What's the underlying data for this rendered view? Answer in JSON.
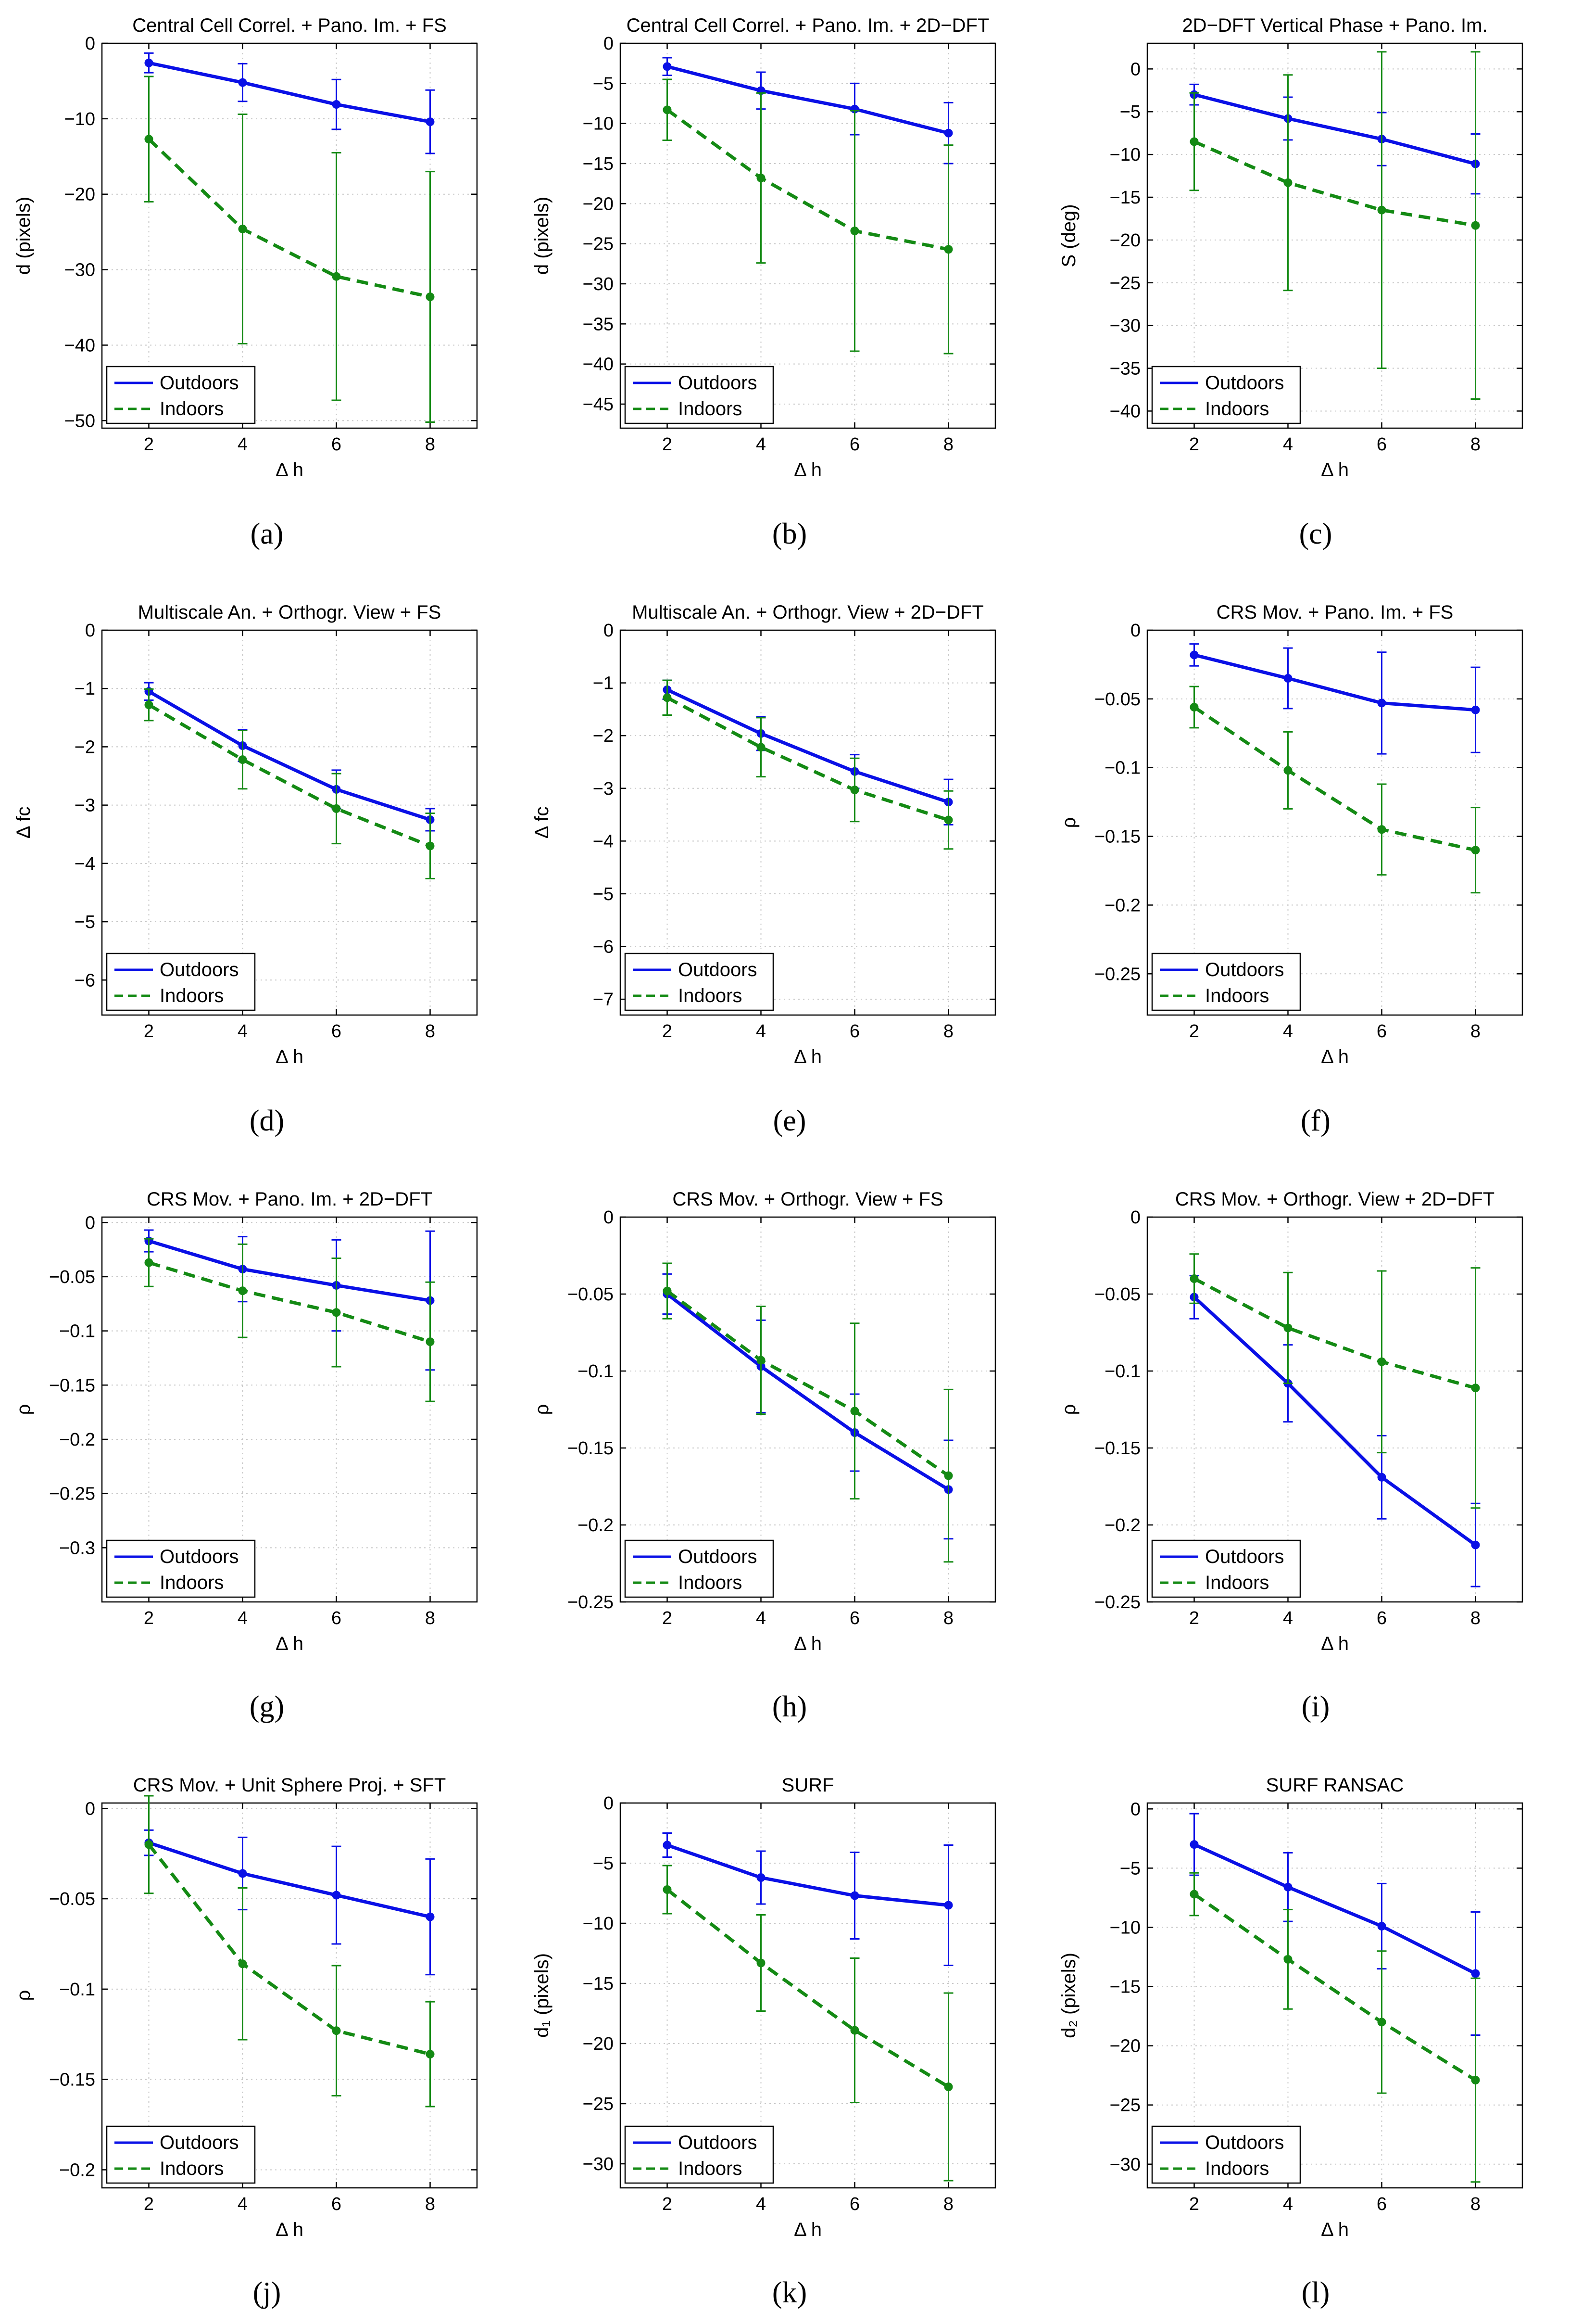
{
  "figure_title": "Performance comparison of visual homing methods: Outdoors vs Indoors",
  "colors": {
    "outdoors": "#0a10e6",
    "indoors": "#148a14",
    "grid": "#c8c8c8",
    "axis": "#000000"
  },
  "chart_data": [
    {
      "panel_label": "(a)",
      "type": "line",
      "title": "Central Cell Correl. + Pano. Im. + FS",
      "xlabel": "Δ h",
      "ylabel": "d (pixels)",
      "xlim": [
        1,
        9
      ],
      "ylim": [
        -51,
        0
      ],
      "xticks": [
        2,
        4,
        6,
        8
      ],
      "xtick_labels": [
        "2",
        "4",
        "6",
        "8"
      ],
      "yticks": [
        -50,
        -40,
        -30,
        -20,
        -10,
        0
      ],
      "ytick_labels": [
        "−50",
        "−40",
        "−30",
        "−20",
        "−10",
        "0"
      ],
      "legend": [
        "Outdoors",
        "Indoors"
      ],
      "legend_position": "bottom-left",
      "grid": true,
      "series": [
        {
          "name": "Outdoors",
          "x": [
            2,
            4,
            6,
            8
          ],
          "y": [
            -2.6,
            -5.2,
            -8.1,
            -10.4
          ],
          "err": [
            1.3,
            2.5,
            3.3,
            4.2
          ]
        },
        {
          "name": "Indoors",
          "x": [
            2,
            4,
            6,
            8
          ],
          "y": [
            -12.7,
            -24.6,
            -30.9,
            -33.6
          ],
          "err": [
            8.3,
            15.2,
            16.4,
            16.6
          ]
        }
      ]
    },
    {
      "panel_label": "(b)",
      "type": "line",
      "title": "Central Cell Correl. + Pano. Im. + 2D−DFT",
      "xlabel": "Δ h",
      "ylabel": "d (pixels)",
      "xlim": [
        1,
        9
      ],
      "ylim": [
        -48,
        0
      ],
      "xticks": [
        2,
        4,
        6,
        8
      ],
      "xtick_labels": [
        "2",
        "4",
        "6",
        "8"
      ],
      "yticks": [
        -45,
        -40,
        -35,
        -30,
        -25,
        -20,
        -15,
        -10,
        -5,
        0
      ],
      "ytick_labels": [
        "−45",
        "−40",
        "−35",
        "−30",
        "−25",
        "−20",
        "−15",
        "−10",
        "−5",
        "0"
      ],
      "legend": [
        "Outdoors",
        "Indoors"
      ],
      "legend_position": "bottom-left",
      "grid": true,
      "series": [
        {
          "name": "Outdoors",
          "x": [
            2,
            4,
            6,
            8
          ],
          "y": [
            -2.9,
            -5.9,
            -8.2,
            -11.2
          ],
          "err": [
            1.1,
            2.3,
            3.2,
            3.8
          ]
        },
        {
          "name": "Indoors",
          "x": [
            2,
            4,
            6,
            8
          ],
          "y": [
            -8.3,
            -16.8,
            -23.4,
            -25.7
          ],
          "err": [
            3.8,
            10.6,
            15.0,
            13.0
          ]
        }
      ]
    },
    {
      "panel_label": "(c)",
      "type": "line",
      "title": "2D−DFT Vertical Phase + Pano. Im.",
      "xlabel": "Δ h",
      "ylabel": "S (deg)",
      "xlim": [
        1,
        9
      ],
      "ylim": [
        -42,
        3
      ],
      "xticks": [
        2,
        4,
        6,
        8
      ],
      "xtick_labels": [
        "2",
        "4",
        "6",
        "8"
      ],
      "yticks": [
        -40,
        -35,
        -30,
        -25,
        -20,
        -15,
        -10,
        -5,
        0
      ],
      "ytick_labels": [
        "−40",
        "−35",
        "−30",
        "−25",
        "−20",
        "−15",
        "−10",
        "−5",
        "0"
      ],
      "legend": [
        "Outdoors",
        "Indoors"
      ],
      "legend_position": "bottom-left",
      "grid": true,
      "series": [
        {
          "name": "Outdoors",
          "x": [
            2,
            4,
            6,
            8
          ],
          "y": [
            -3.0,
            -5.8,
            -8.2,
            -11.1
          ],
          "err": [
            1.2,
            2.5,
            3.1,
            3.5
          ]
        },
        {
          "name": "Indoors",
          "x": [
            2,
            4,
            6,
            8
          ],
          "y": [
            -8.5,
            -13.3,
            -16.5,
            -18.3
          ],
          "err": [
            5.7,
            12.6,
            18.5,
            20.3
          ]
        }
      ]
    },
    {
      "panel_label": "(d)",
      "type": "line",
      "title": "Multiscale An. + Orthogr. View + FS",
      "xlabel": "Δ h",
      "ylabel": "Δ fc",
      "xlim": [
        1,
        9
      ],
      "ylim": [
        -6.6,
        0
      ],
      "xticks": [
        2,
        4,
        6,
        8
      ],
      "xtick_labels": [
        "2",
        "4",
        "6",
        "8"
      ],
      "yticks": [
        -6,
        -5,
        -4,
        -3,
        -2,
        -1,
        0
      ],
      "ytick_labels": [
        "−6",
        "−5",
        "−4",
        "−3",
        "−2",
        "−1",
        "0"
      ],
      "legend": [
        "Outdoors",
        "Indoors"
      ],
      "legend_position": "bottom-left",
      "grid": true,
      "series": [
        {
          "name": "Outdoors",
          "x": [
            2,
            4,
            6,
            8
          ],
          "y": [
            -1.05,
            -1.98,
            -2.73,
            -3.25
          ],
          "err": [
            0.15,
            0.27,
            0.33,
            0.19
          ]
        },
        {
          "name": "Indoors",
          "x": [
            2,
            4,
            6,
            8
          ],
          "y": [
            -1.28,
            -2.22,
            -3.06,
            -3.7
          ],
          "err": [
            0.27,
            0.5,
            0.6,
            0.56
          ]
        }
      ]
    },
    {
      "panel_label": "(e)",
      "type": "line",
      "title": "Multiscale An. + Orthogr. View + 2D−DFT",
      "xlabel": "Δ h",
      "ylabel": "Δ fc",
      "xlim": [
        1,
        9
      ],
      "ylim": [
        -7.3,
        0
      ],
      "xticks": [
        2,
        4,
        6,
        8
      ],
      "xtick_labels": [
        "2",
        "4",
        "6",
        "8"
      ],
      "yticks": [
        -7,
        -6,
        -5,
        -4,
        -3,
        -2,
        -1,
        0
      ],
      "ytick_labels": [
        "−7",
        "−6",
        "−5",
        "−4",
        "−3",
        "−2",
        "−1",
        "0"
      ],
      "legend": [
        "Outdoors",
        "Indoors"
      ],
      "legend_position": "bottom-left",
      "grid": true,
      "series": [
        {
          "name": "Outdoors",
          "x": [
            2,
            4,
            6,
            8
          ],
          "y": [
            -1.13,
            -1.96,
            -2.68,
            -3.26
          ],
          "err": [
            0.18,
            0.32,
            0.32,
            0.43
          ]
        },
        {
          "name": "Indoors",
          "x": [
            2,
            4,
            6,
            8
          ],
          "y": [
            -1.28,
            -2.22,
            -3.03,
            -3.6
          ],
          "err": [
            0.33,
            0.56,
            0.6,
            0.55
          ]
        }
      ]
    },
    {
      "panel_label": "(f)",
      "type": "line",
      "title": "CRS Mov. + Pano. Im. + FS",
      "xlabel": "Δ h",
      "ylabel": "ρ",
      "xlim": [
        1,
        9
      ],
      "ylim": [
        -0.28,
        0
      ],
      "xticks": [
        2,
        4,
        6,
        8
      ],
      "xtick_labels": [
        "2",
        "4",
        "6",
        "8"
      ],
      "yticks": [
        -0.25,
        -0.2,
        -0.15,
        -0.1,
        -0.05,
        0
      ],
      "ytick_labels": [
        "−0.25",
        "−0.2",
        "−0.15",
        "−0.1",
        "−0.05",
        "0"
      ],
      "legend": [
        "Outdoors",
        "Indoors"
      ],
      "legend_position": "bottom-left",
      "grid": true,
      "series": [
        {
          "name": "Outdoors",
          "x": [
            2,
            4,
            6,
            8
          ],
          "y": [
            -0.018,
            -0.035,
            -0.053,
            -0.058
          ],
          "err": [
            0.008,
            0.022,
            0.037,
            0.031
          ]
        },
        {
          "name": "Indoors",
          "x": [
            2,
            4,
            6,
            8
          ],
          "y": [
            -0.056,
            -0.102,
            -0.145,
            -0.16
          ],
          "err": [
            0.015,
            0.028,
            0.033,
            0.031
          ]
        }
      ]
    },
    {
      "panel_label": "(g)",
      "type": "line",
      "title": "CRS Mov. + Pano. Im. + 2D−DFT",
      "xlabel": "Δ h",
      "ylabel": "ρ",
      "xlim": [
        1,
        9
      ],
      "ylim": [
        -0.35,
        0.005
      ],
      "xticks": [
        2,
        4,
        6,
        8
      ],
      "xtick_labels": [
        "2",
        "4",
        "6",
        "8"
      ],
      "yticks": [
        -0.3,
        -0.25,
        -0.2,
        -0.15,
        -0.1,
        -0.05,
        0
      ],
      "ytick_labels": [
        "−0.3",
        "−0.25",
        "−0.2",
        "−0.15",
        "−0.1",
        "−0.05",
        "0"
      ],
      "legend": [
        "Outdoors",
        "Indoors"
      ],
      "legend_position": "bottom-left",
      "grid": true,
      "series": [
        {
          "name": "Outdoors",
          "x": [
            2,
            4,
            6,
            8
          ],
          "y": [
            -0.017,
            -0.043,
            -0.058,
            -0.072
          ],
          "err": [
            0.01,
            0.03,
            0.042,
            0.064
          ]
        },
        {
          "name": "Indoors",
          "x": [
            2,
            4,
            6,
            8
          ],
          "y": [
            -0.037,
            -0.063,
            -0.083,
            -0.11
          ],
          "err": [
            0.022,
            0.043,
            0.05,
            0.055
          ]
        }
      ]
    },
    {
      "panel_label": "(h)",
      "type": "line",
      "title": "CRS Mov. + Orthogr. View + FS",
      "xlabel": "Δ h",
      "ylabel": "ρ",
      "xlim": [
        1,
        9
      ],
      "ylim": [
        -0.25,
        0
      ],
      "xticks": [
        2,
        4,
        6,
        8
      ],
      "xtick_labels": [
        "2",
        "4",
        "6",
        "8"
      ],
      "yticks": [
        -0.25,
        -0.2,
        -0.15,
        -0.1,
        -0.05,
        0
      ],
      "ytick_labels": [
        "−0.25",
        "−0.2",
        "−0.15",
        "−0.1",
        "−0.05",
        "0"
      ],
      "legend": [
        "Outdoors",
        "Indoors"
      ],
      "legend_position": "bottom-left",
      "grid": true,
      "series": [
        {
          "name": "Outdoors",
          "x": [
            2,
            4,
            6,
            8
          ],
          "y": [
            -0.05,
            -0.097,
            -0.14,
            -0.177
          ],
          "err": [
            0.013,
            0.03,
            0.025,
            0.032
          ]
        },
        {
          "name": "Indoors",
          "x": [
            2,
            4,
            6,
            8
          ],
          "y": [
            -0.048,
            -0.093,
            -0.126,
            -0.168
          ],
          "err": [
            0.018,
            0.035,
            0.057,
            0.056
          ]
        }
      ]
    },
    {
      "panel_label": "(i)",
      "type": "line",
      "title": "CRS Mov. + Orthogr. View + 2D−DFT",
      "xlabel": "Δ h",
      "ylabel": "ρ",
      "xlim": [
        1,
        9
      ],
      "ylim": [
        -0.25,
        0
      ],
      "xticks": [
        2,
        4,
        6,
        8
      ],
      "xtick_labels": [
        "2",
        "4",
        "6",
        "8"
      ],
      "yticks": [
        -0.25,
        -0.2,
        -0.15,
        -0.1,
        -0.05,
        0
      ],
      "ytick_labels": [
        "−0.25",
        "−0.2",
        "−0.15",
        "−0.1",
        "−0.05",
        "0"
      ],
      "legend": [
        "Outdoors",
        "Indoors"
      ],
      "legend_position": "bottom-left",
      "grid": true,
      "series": [
        {
          "name": "Outdoors",
          "x": [
            2,
            4,
            6,
            8
          ],
          "y": [
            -0.052,
            -0.108,
            -0.169,
            -0.213
          ],
          "err": [
            0.014,
            0.025,
            0.027,
            0.027
          ]
        },
        {
          "name": "Indoors",
          "x": [
            2,
            4,
            6,
            8
          ],
          "y": [
            -0.04,
            -0.072,
            -0.094,
            -0.111
          ],
          "err": [
            0.016,
            0.036,
            0.059,
            0.078
          ]
        }
      ]
    },
    {
      "panel_label": "(j)",
      "type": "line",
      "title": "CRS Mov. + Unit Sphere Proj. + SFT",
      "xlabel": "Δ h",
      "ylabel": "ρ",
      "xlim": [
        1,
        9
      ],
      "ylim": [
        -0.21,
        0.003
      ],
      "xticks": [
        2,
        4,
        6,
        8
      ],
      "xtick_labels": [
        "2",
        "4",
        "6",
        "8"
      ],
      "yticks": [
        -0.2,
        -0.15,
        -0.1,
        -0.05,
        0
      ],
      "ytick_labels": [
        "−0.2",
        "−0.15",
        "−0.1",
        "−0.05",
        "0"
      ],
      "legend": [
        "Outdoors",
        "Indoors"
      ],
      "legend_position": "bottom-left",
      "grid": true,
      "series": [
        {
          "name": "Outdoors",
          "x": [
            2,
            4,
            6,
            8
          ],
          "y": [
            -0.019,
            -0.036,
            -0.048,
            -0.06
          ],
          "err": [
            0.007,
            0.02,
            0.027,
            0.032
          ]
        },
        {
          "name": "Indoors",
          "x": [
            2,
            4,
            6,
            8
          ],
          "y": [
            -0.02,
            -0.086,
            -0.123,
            -0.136
          ],
          "err": [
            0.027,
            0.042,
            0.036,
            0.029
          ]
        }
      ]
    },
    {
      "panel_label": "(k)",
      "type": "line",
      "title": "SURF",
      "xlabel": "Δ h",
      "ylabel": "d₁ (pixels)",
      "xlim": [
        1,
        9
      ],
      "ylim": [
        -32,
        0
      ],
      "xticks": [
        2,
        4,
        6,
        8
      ],
      "xtick_labels": [
        "2",
        "4",
        "6",
        "8"
      ],
      "yticks": [
        -30,
        -25,
        -20,
        -15,
        -10,
        -5,
        0
      ],
      "ytick_labels": [
        "−30",
        "−25",
        "−20",
        "−15",
        "−10",
        "−5",
        "0"
      ],
      "legend": [
        "Outdoors",
        "Indoors"
      ],
      "legend_position": "bottom-left",
      "grid": true,
      "series": [
        {
          "name": "Outdoors",
          "x": [
            2,
            4,
            6,
            8
          ],
          "y": [
            -3.5,
            -6.2,
            -7.7,
            -8.5
          ],
          "err": [
            1.0,
            2.2,
            3.6,
            5.0
          ]
        },
        {
          "name": "Indoors",
          "x": [
            2,
            4,
            6,
            8
          ],
          "y": [
            -7.2,
            -13.3,
            -18.9,
            -23.6
          ],
          "err": [
            2.0,
            4.0,
            6.0,
            7.8
          ]
        }
      ]
    },
    {
      "panel_label": "(l)",
      "type": "line",
      "title": "SURF RANSAC",
      "xlabel": "Δ h",
      "ylabel": "d₂ (pixels)",
      "xlim": [
        1,
        9
      ],
      "ylim": [
        -32,
        0.5
      ],
      "xticks": [
        2,
        4,
        6,
        8
      ],
      "xtick_labels": [
        "2",
        "4",
        "6",
        "8"
      ],
      "yticks": [
        -30,
        -25,
        -20,
        -15,
        -10,
        -5,
        0
      ],
      "ytick_labels": [
        "−30",
        "−25",
        "−20",
        "−15",
        "−10",
        "−5",
        "0"
      ],
      "legend": [
        "Outdoors",
        "Indoors"
      ],
      "legend_position": "bottom-left",
      "grid": true,
      "series": [
        {
          "name": "Outdoors",
          "x": [
            2,
            4,
            6,
            8
          ],
          "y": [
            -3.0,
            -6.6,
            -9.9,
            -13.9
          ],
          "err": [
            2.6,
            2.9,
            3.6,
            5.2
          ]
        },
        {
          "name": "Indoors",
          "x": [
            2,
            4,
            6,
            8
          ],
          "y": [
            -7.2,
            -12.7,
            -18.0,
            -22.9
          ],
          "err": [
            1.8,
            4.2,
            6.0,
            8.6
          ]
        }
      ]
    }
  ]
}
